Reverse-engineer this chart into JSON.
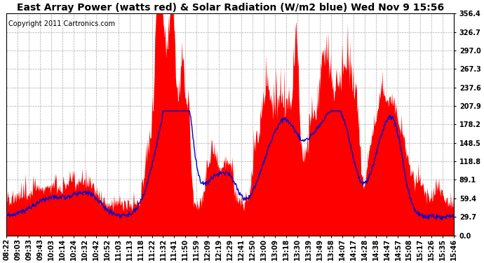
{
  "title": "East Array Power (watts red) & Solar Radiation (W/m2 blue) Wed Nov 9 15:56",
  "copyright": "Copyright 2011 Cartronics.com",
  "ymax": 356.4,
  "ymin": 0.0,
  "yticks": [
    0.0,
    29.7,
    59.4,
    89.1,
    118.8,
    148.5,
    178.2,
    207.9,
    237.6,
    267.3,
    297.0,
    326.7,
    356.4
  ],
  "xtick_labels": [
    "08:22",
    "09:03",
    "09:33",
    "09:43",
    "10:03",
    "10:14",
    "10:24",
    "10:32",
    "10:42",
    "10:52",
    "11:03",
    "11:13",
    "11:18",
    "11:22",
    "11:32",
    "11:41",
    "11:50",
    "11:59",
    "12:09",
    "12:19",
    "12:29",
    "12:41",
    "12:50",
    "13:00",
    "13:09",
    "13:18",
    "13:30",
    "13:39",
    "13:49",
    "13:58",
    "14:07",
    "14:17",
    "14:28",
    "14:38",
    "14:47",
    "14:57",
    "15:08",
    "15:17",
    "15:26",
    "15:35",
    "15:46"
  ],
  "background_color": "#ffffff",
  "red_color": "#ff0000",
  "blue_color": "#0000cc",
  "grid_color": "#aaaaaa",
  "title_fontsize": 10,
  "copyright_fontsize": 7,
  "tick_fontsize": 7
}
